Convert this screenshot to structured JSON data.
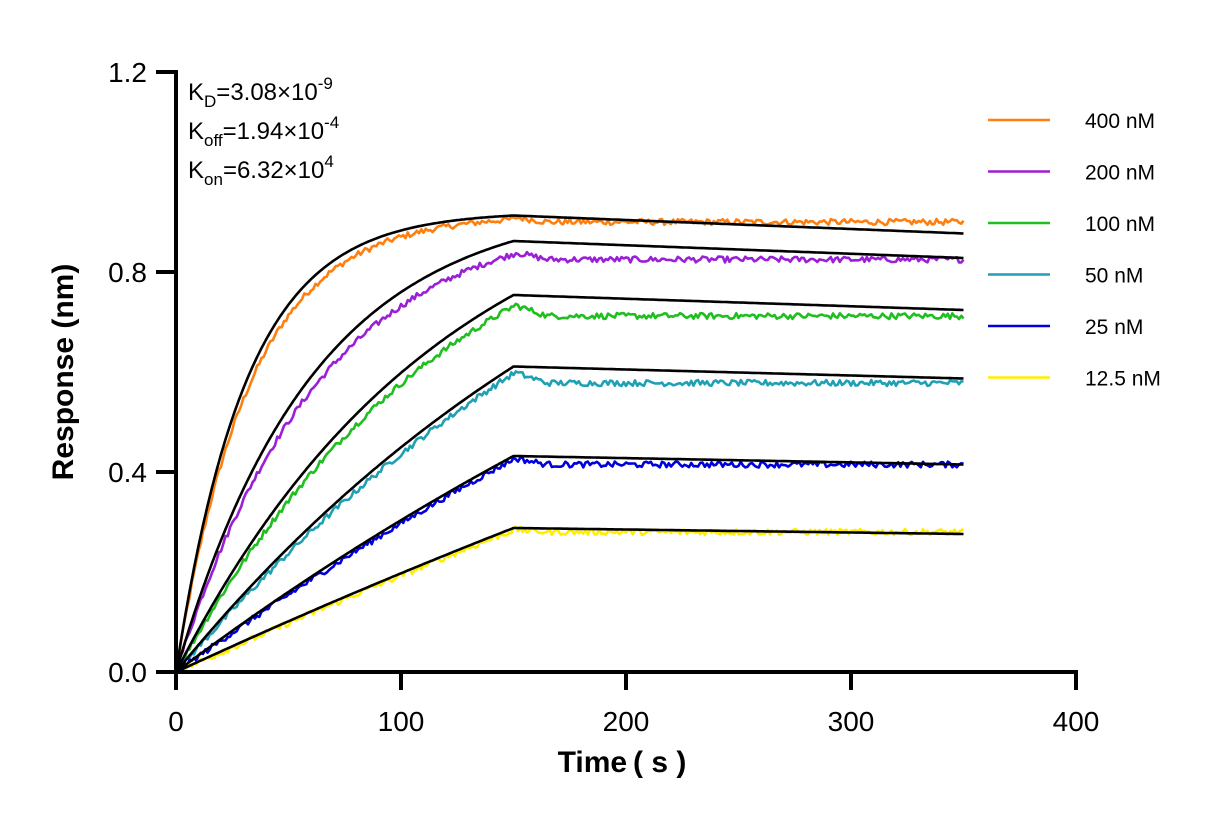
{
  "chart_data": {
    "type": "line",
    "xlabel": "Time ( s )",
    "ylabel": "Response (nm)",
    "xlim": [
      0,
      400
    ],
    "ylim": [
      0,
      1.2
    ],
    "x_ticks": [
      0,
      100,
      200,
      300,
      400
    ],
    "x_tick_labels": [
      "0",
      "100",
      "200",
      "300",
      "400"
    ],
    "y_ticks": [
      0,
      0.4,
      0.8,
      1.2
    ],
    "y_tick_labels": [
      "0.0",
      "0.4",
      "0.8",
      "1.2"
    ],
    "grid": false,
    "legend_position": "right",
    "association_end": 150,
    "x_end": 350,
    "annotations": [
      {
        "main": "K",
        "sub": "D",
        "rest": "=3.08×10",
        "sup": "-9"
      },
      {
        "main": "K",
        "sub": "off",
        "rest": "=1.94×10",
        "sup": "-4"
      },
      {
        "main": "K",
        "sub": "on",
        "rest": "=6.32×10",
        "sup": "4"
      }
    ],
    "series": [
      {
        "name": "400 nM",
        "color": "#ff7f0e",
        "plateau": 0.91,
        "dissoc_end": 0.9,
        "fit_plateau": 0.913,
        "fit_end": 0.877
      },
      {
        "name": "200 nM",
        "color": "#9b1fd6",
        "plateau": 0.84,
        "dissoc_end": 0.825,
        "fit_plateau": 0.862,
        "fit_end": 0.828
      },
      {
        "name": "100 nM",
        "color": "#1fbf1f",
        "plateau": 0.735,
        "dissoc_end": 0.712,
        "fit_plateau": 0.754,
        "fit_end": 0.724
      },
      {
        "name": "50 nM",
        "color": "#1fa0b4",
        "plateau": 0.6,
        "dissoc_end": 0.578,
        "fit_plateau": 0.611,
        "fit_end": 0.587
      },
      {
        "name": "25 nM",
        "color": "#0000dd",
        "plateau": 0.428,
        "dissoc_end": 0.415,
        "fit_plateau": 0.432,
        "fit_end": 0.415
      },
      {
        "name": "12.5 nM",
        "color": "#ffee00",
        "plateau": 0.285,
        "dissoc_end": 0.28,
        "fit_plateau": 0.288,
        "fit_end": 0.276
      }
    ]
  }
}
